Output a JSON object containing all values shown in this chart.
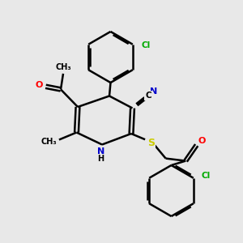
{
  "bg_color": "#e8e8e8",
  "bond_color": "#000000",
  "bond_width": 1.8,
  "atom_colors": {
    "N": "#0000cc",
    "O": "#ff0000",
    "S": "#cccc00",
    "Cl": "#00aa00",
    "C": "#000000",
    "H": "#000000"
  },
  "figsize": [
    3.0,
    3.0
  ],
  "dpi": 100,
  "xlim": [
    0,
    10
  ],
  "ylim": [
    0,
    10
  ]
}
